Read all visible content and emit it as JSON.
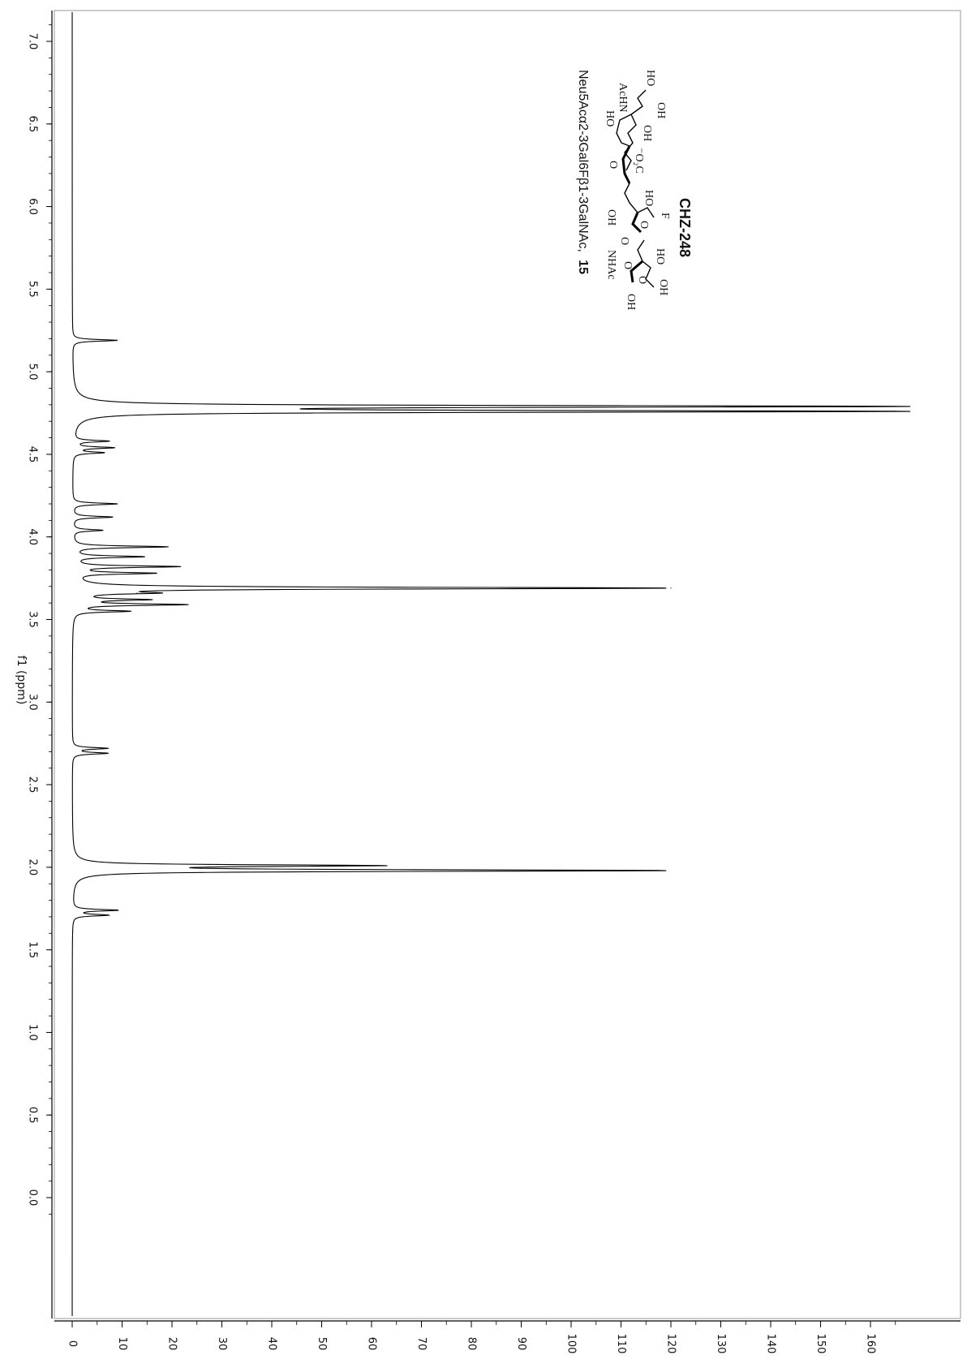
{
  "chart_data": {
    "type": "line",
    "orientation": "rotated-90-clockwise",
    "xlabel": "f1 (ppm)",
    "xlim": [
      7.15,
      -0.2
    ],
    "x_ticks": [
      "7.0",
      "6.5",
      "6.0",
      "5.5",
      "5.0",
      "4.5",
      "4.0",
      "3.5",
      "3.0",
      "2.5",
      "2.0",
      "1.5",
      "1.0",
      "0.5",
      "0.0"
    ],
    "ylim": [
      -3,
      165
    ],
    "y_ticks": [
      "0",
      "10",
      "20",
      "30",
      "40",
      "50",
      "60",
      "70",
      "80",
      "90",
      "100",
      "110",
      "120",
      "130",
      "140",
      "150",
      "160"
    ],
    "series": [
      {
        "peaks": [
          {
            "ppm": 5.19,
            "height": 9
          },
          {
            "ppm": 4.79,
            "height": 165
          },
          {
            "ppm": 4.76,
            "height": 165
          },
          {
            "ppm": 4.58,
            "height": 7
          },
          {
            "ppm": 4.54,
            "height": 8
          },
          {
            "ppm": 4.51,
            "height": 6
          },
          {
            "ppm": 4.2,
            "height": 9
          },
          {
            "ppm": 4.12,
            "height": 8
          },
          {
            "ppm": 4.04,
            "height": 6
          },
          {
            "ppm": 3.94,
            "height": 19
          },
          {
            "ppm": 3.88,
            "height": 14
          },
          {
            "ppm": 3.82,
            "height": 21
          },
          {
            "ppm": 3.78,
            "height": 16
          },
          {
            "ppm": 3.69,
            "height": 120
          },
          {
            "ppm": 3.66,
            "height": 13
          },
          {
            "ppm": 3.62,
            "height": 14
          },
          {
            "ppm": 3.59,
            "height": 22
          },
          {
            "ppm": 3.55,
            "height": 11
          },
          {
            "ppm": 2.72,
            "height": 7
          },
          {
            "ppm": 2.69,
            "height": 7
          },
          {
            "ppm": 2.01,
            "height": 59
          },
          {
            "ppm": 1.98,
            "height": 118
          },
          {
            "ppm": 1.74,
            "height": 9
          },
          {
            "ppm": 1.71,
            "height": 7
          }
        ]
      }
    ]
  },
  "compound": {
    "code": "CHZ-248",
    "name": "Neu5Acα2-3Gal6Fβ1-3GalNAc,",
    "number": "15",
    "atoms": [
      "HO",
      "OH",
      "OH",
      "⁻O₂C",
      "AcHN",
      "HO",
      "O",
      "HO",
      "F",
      "O",
      "O",
      "OH",
      "HO",
      "OH",
      "O",
      "O",
      "OH",
      "NHAc"
    ]
  }
}
